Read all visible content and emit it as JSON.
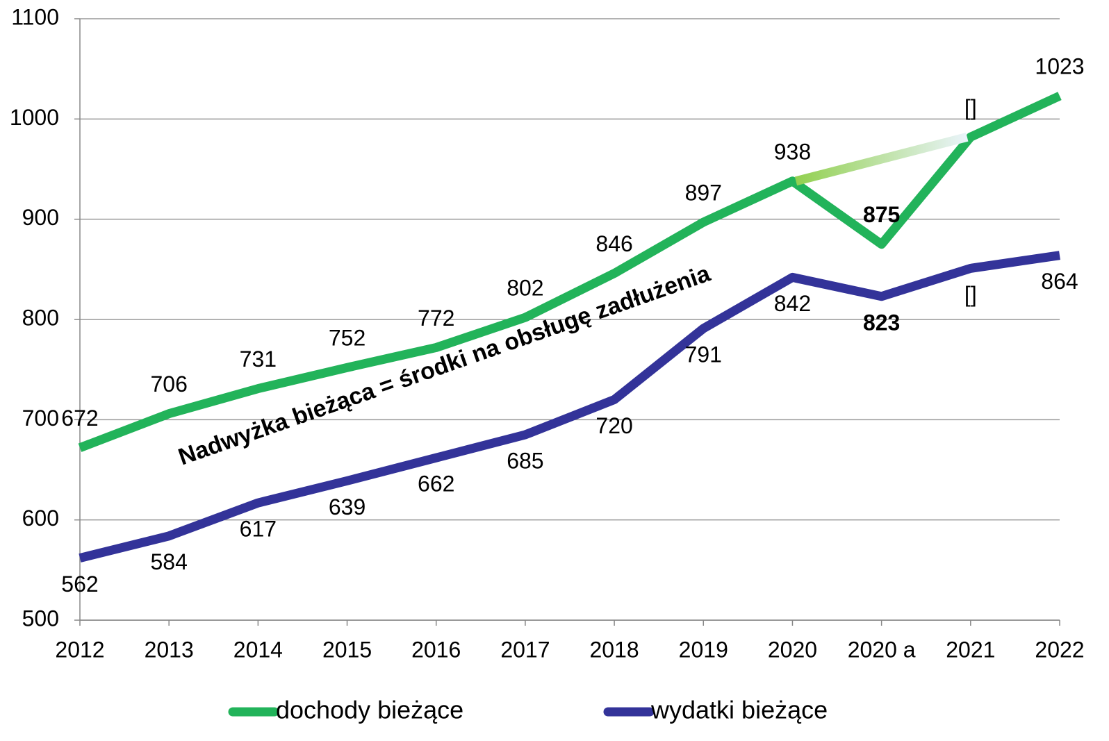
{
  "chart_data": {
    "type": "line",
    "categories": [
      "2012",
      "2013",
      "2014",
      "2015",
      "2016",
      "2017",
      "2018",
      "2019",
      "2020",
      "2020 a",
      "2021",
      "2022"
    ],
    "series": [
      {
        "name": "dochody bieżące",
        "color": "#22b35a",
        "values": [
          672,
          706,
          731,
          752,
          772,
          802,
          846,
          897,
          938,
          875,
          982,
          1023
        ],
        "value_labels": [
          "672",
          "706",
          "731",
          "752",
          "772",
          "802",
          "846",
          "897",
          "938",
          "875",
          "[]",
          "1023"
        ],
        "value_label_colors": [
          "#000000",
          "#000000",
          "#000000",
          "#000000",
          "#000000",
          "#000000",
          "#000000",
          "#000000",
          "#000000",
          "#ff0000",
          "#000000",
          "#000000"
        ]
      },
      {
        "name": "wydatki bieżące",
        "color": "#333399",
        "values": [
          562,
          584,
          617,
          639,
          662,
          685,
          720,
          791,
          842,
          823,
          851,
          864
        ],
        "value_labels": [
          "562",
          "584",
          "617",
          "639",
          "662",
          "685",
          "720",
          "791",
          "842",
          "823",
          "[]",
          "864"
        ],
        "value_label_colors": [
          "#000000",
          "#000000",
          "#000000",
          "#000000",
          "#000000",
          "#000000",
          "#000000",
          "#000000",
          "#000000",
          "#ff0000",
          "#000000",
          "#000000"
        ]
      }
    ],
    "bridge": {
      "series": 0,
      "from": "2020",
      "to": "2021",
      "colors": [
        "#92d050",
        "#eaf4fb"
      ]
    },
    "annotation": {
      "text": "Nadwyżka bieżąca = środki na obsługę zadłużenia",
      "color": "#ff0000"
    },
    "ylim": [
      500,
      1100
    ],
    "yticks": [
      500,
      600,
      700,
      800,
      900,
      1000,
      1100
    ],
    "grid": true,
    "legend": "bottom"
  }
}
